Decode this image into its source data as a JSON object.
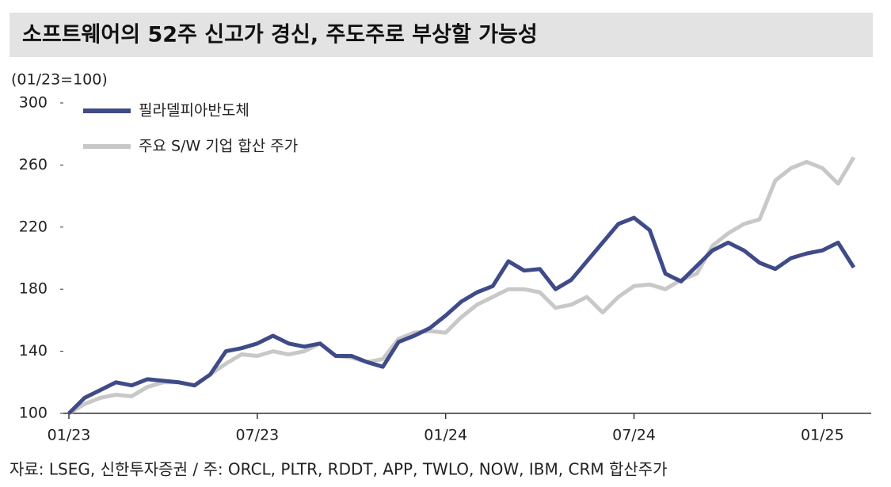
{
  "chart_data": {
    "type": "line",
    "title": "소프트웨어의 52주 신고가 경신, 주도주로 부상할 가능성",
    "y_label": "(01/23=100)",
    "source": "자료: LSEG, 신한투자증권 / 주: ORCL, PLTR, RDDT, APP, TWLO, NOW, IBM, CRM 합산주가",
    "categories": [
      "01/23",
      null,
      null,
      null,
      null,
      null,
      null,
      null,
      null,
      null,
      null,
      null,
      "07/23",
      null,
      null,
      null,
      null,
      null,
      null,
      null,
      null,
      null,
      null,
      null,
      "01/24",
      null,
      null,
      null,
      null,
      null,
      null,
      null,
      null,
      null,
      null,
      null,
      "07/24",
      null,
      null,
      null,
      null,
      null,
      null,
      null,
      null,
      null,
      null,
      null,
      "01/25",
      null,
      null
    ],
    "series": [
      {
        "name": "필라델피아반도체",
        "color": "#3f4b88",
        "values": [
          100,
          110,
          115,
          120,
          118,
          122,
          121,
          120,
          118,
          125,
          140,
          142,
          145,
          150,
          145,
          143,
          145,
          137,
          137,
          133,
          130,
          146,
          150,
          155,
          163,
          172,
          178,
          182,
          198,
          192,
          193,
          180,
          186,
          198,
          210,
          222,
          226,
          218,
          190,
          185,
          195,
          205,
          210,
          205,
          197,
          193,
          200,
          203,
          205,
          210,
          194
        ]
      },
      {
        "name": "주요 S/W 기업 합산 주가",
        "color": "#c8c8c8",
        "values": [
          100,
          106,
          110,
          112,
          111,
          117,
          120,
          120,
          118,
          125,
          132,
          138,
          137,
          140,
          138,
          140,
          145,
          137,
          136,
          133,
          135,
          148,
          152,
          153,
          152,
          162,
          170,
          175,
          180,
          180,
          178,
          168,
          170,
          175,
          165,
          175,
          182,
          183,
          180,
          186,
          190,
          208,
          216,
          222,
          225,
          250,
          258,
          262,
          258,
          248,
          265
        ]
      }
    ],
    "ylim": [
      100,
      300
    ],
    "yticks": [
      100,
      140,
      180,
      220,
      260,
      300
    ],
    "grid": false
  }
}
